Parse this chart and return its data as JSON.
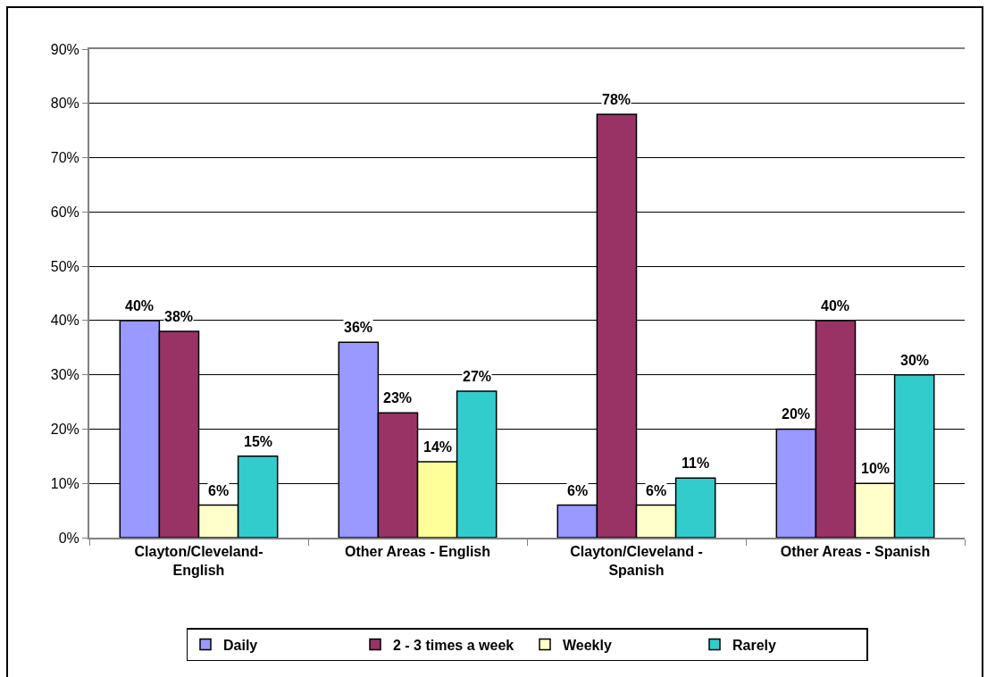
{
  "chart_data": {
    "type": "bar",
    "categories": [
      "Clayton/Cleveland-English",
      "Other Areas - English",
      "Clayton/Cleveland - Spanish",
      "Other Areas - Spanish"
    ],
    "series": [
      {
        "name": "Daily",
        "color": "#9999ff",
        "values": [
          40,
          36,
          6,
          20
        ],
        "value_labels": [
          "40%",
          "36%",
          "6%",
          "20%"
        ]
      },
      {
        "name": "2 - 3 times a week",
        "color": "#993366",
        "values": [
          38,
          23,
          78,
          40
        ],
        "value_labels": [
          "38%",
          "23%",
          "78%",
          "40%"
        ]
      },
      {
        "name": "Weekly",
        "color": "#ffffcc",
        "colors": [
          "#ffffcc",
          "#ffff99",
          "#ffffcc",
          "#ffffcc"
        ],
        "values": [
          6,
          14,
          6,
          10
        ],
        "value_labels": [
          "6%",
          "14%",
          "6%",
          "10%"
        ]
      },
      {
        "name": "Rarely",
        "color": "#33cccc",
        "values": [
          15,
          27,
          11,
          30
        ],
        "value_labels": [
          "15%",
          "27%",
          "11%",
          "30%"
        ]
      }
    ],
    "ylim": [
      0,
      90
    ],
    "yticks": [
      {
        "value": 0,
        "label": "0%"
      },
      {
        "value": 10,
        "label": "10%"
      },
      {
        "value": 20,
        "label": "20%"
      },
      {
        "value": 30,
        "label": "30%"
      },
      {
        "value": 40,
        "label": "40%"
      },
      {
        "value": 50,
        "label": "50%"
      },
      {
        "value": 60,
        "label": "60%"
      },
      {
        "value": 70,
        "label": "70%"
      },
      {
        "value": 80,
        "label": "80%"
      },
      {
        "value": 90,
        "label": "90%"
      }
    ],
    "grid": "y",
    "legend": "bottom"
  }
}
